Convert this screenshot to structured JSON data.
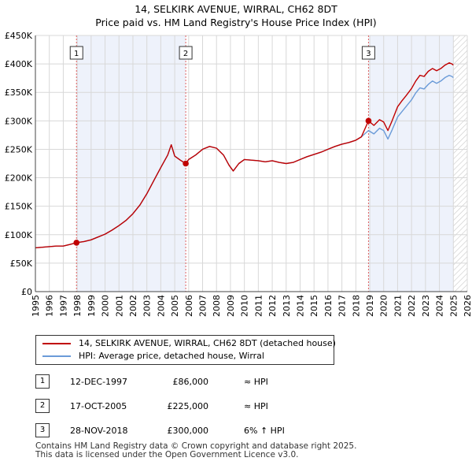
{
  "title_line1": "14, SELKIRK AVENUE, WIRRAL, CH62 8DT",
  "title_line2": "Price paid vs. HM Land Registry's House Price Index (HPI)",
  "legend": {
    "property_label": "14, SELKIRK AVENUE, WIRRAL, CH62 8DT (detached house)",
    "hpi_label": "HPI: Average price, detached house, Wirral"
  },
  "transactions": [
    {
      "num": "1",
      "date": "12-DEC-1997",
      "price": "£86,000",
      "hpi": "≈ HPI"
    },
    {
      "num": "2",
      "date": "17-OCT-2005",
      "price": "£225,000",
      "hpi": "≈ HPI"
    },
    {
      "num": "3",
      "date": "28-NOV-2018",
      "price": "£300,000",
      "hpi": "6% ↑ HPI"
    }
  ],
  "footer_line1": "Contains HM Land Registry data © Crown copyright and database right 2025.",
  "footer_line2": "This data is licensed under the Open Government Licence v3.0.",
  "colors": {
    "property": "#c00000",
    "hpi": "#6a9bd8",
    "shade": "#eef2fb",
    "grid": "#d8d8d8"
  },
  "chart_data": {
    "type": "line",
    "xlim": [
      1995,
      2026
    ],
    "ylim": [
      0,
      450000
    ],
    "x_ticks": [
      1995,
      1996,
      1997,
      1998,
      1999,
      2000,
      2001,
      2002,
      2003,
      2004,
      2005,
      2006,
      2007,
      2008,
      2009,
      2010,
      2011,
      2012,
      2013,
      2014,
      2015,
      2016,
      2017,
      2018,
      2019,
      2020,
      2021,
      2022,
      2023,
      2024,
      2025,
      2026
    ],
    "y_ticks": [
      0,
      50000,
      100000,
      150000,
      200000,
      250000,
      300000,
      350000,
      400000,
      450000
    ],
    "y_tick_labels": [
      "£0",
      "£50K",
      "£100K",
      "£150K",
      "£200K",
      "£250K",
      "£300K",
      "£350K",
      "£400K",
      "£450K"
    ],
    "shaded_ranges": [
      [
        1997.95,
        2005.79
      ],
      [
        2018.91,
        2025.0
      ]
    ],
    "hatched_after": 2025.0,
    "markers": [
      {
        "label": "1",
        "x": 1997.95,
        "y": 86000
      },
      {
        "label": "2",
        "x": 2005.79,
        "y": 225000
      },
      {
        "label": "3",
        "x": 2018.91,
        "y": 300000
      }
    ],
    "series": [
      {
        "name": "14, SELKIRK AVENUE, WIRRAL, CH62 8DT (detached house)",
        "x": [
          1995.0,
          1995.5,
          1996.0,
          1996.5,
          1997.0,
          1997.5,
          1997.95,
          1998.5,
          1999.0,
          1999.5,
          2000.0,
          2000.5,
          2001.0,
          2001.5,
          2002.0,
          2002.5,
          2003.0,
          2003.5,
          2004.0,
          2004.5,
          2004.75,
          2005.0,
          2005.4,
          2005.79,
          2006.0,
          2006.5,
          2007.0,
          2007.5,
          2008.0,
          2008.5,
          2008.9,
          2009.2,
          2009.6,
          2010.0,
          2010.5,
          2011.0,
          2011.5,
          2012.0,
          2012.5,
          2013.0,
          2013.5,
          2014.0,
          2014.5,
          2015.0,
          2015.5,
          2016.0,
          2016.5,
          2017.0,
          2017.5,
          2018.0,
          2018.4,
          2018.91,
          2019.3,
          2019.7,
          2020.0,
          2020.3,
          2020.6,
          2021.0,
          2021.3,
          2021.6,
          2022.0,
          2022.3,
          2022.6,
          2022.9,
          2023.2,
          2023.5,
          2023.8,
          2024.1,
          2024.4,
          2024.7,
          2024.9,
          2025.0
        ],
        "values": [
          77000,
          78000,
          79000,
          80000,
          80000,
          83000,
          86000,
          88000,
          91000,
          96000,
          101000,
          108000,
          116000,
          125000,
          137000,
          152000,
          172000,
          195000,
          218000,
          240000,
          258000,
          238000,
          231000,
          225000,
          232000,
          240000,
          250000,
          255000,
          252000,
          240000,
          222000,
          212000,
          225000,
          232000,
          231000,
          230000,
          228000,
          230000,
          227000,
          225000,
          227000,
          232000,
          237000,
          241000,
          245000,
          250000,
          255000,
          259000,
          262000,
          266000,
          272000,
          300000,
          292000,
          302000,
          298000,
          283000,
          300000,
          325000,
          335000,
          344000,
          357000,
          370000,
          380000,
          378000,
          387000,
          392000,
          388000,
          392000,
          398000,
          402000,
          400000,
          398000
        ]
      },
      {
        "name": "HPI: Average price, detached house, Wirral",
        "x": [
          1995.0,
          1995.5,
          1996.0,
          1996.5,
          1997.0,
          1997.5,
          1997.95,
          1998.5,
          1999.0,
          1999.5,
          2000.0,
          2000.5,
          2001.0,
          2001.5,
          2002.0,
          2002.5,
          2003.0,
          2003.5,
          2004.0,
          2004.5,
          2004.75,
          2005.0,
          2005.4,
          2005.79,
          2006.0,
          2006.5,
          2007.0,
          2007.5,
          2008.0,
          2008.5,
          2008.9,
          2009.2,
          2009.6,
          2010.0,
          2010.5,
          2011.0,
          2011.5,
          2012.0,
          2012.5,
          2013.0,
          2013.5,
          2014.0,
          2014.5,
          2015.0,
          2015.5,
          2016.0,
          2016.5,
          2017.0,
          2017.5,
          2018.0,
          2018.4,
          2018.91,
          2019.3,
          2019.7,
          2020.0,
          2020.3,
          2020.6,
          2021.0,
          2021.3,
          2021.6,
          2022.0,
          2022.3,
          2022.6,
          2022.9,
          2023.2,
          2023.5,
          2023.8,
          2024.1,
          2024.4,
          2024.7,
          2024.9,
          2025.0
        ],
        "values": [
          77000,
          78000,
          79000,
          80000,
          80000,
          83000,
          86000,
          88000,
          91000,
          96000,
          101000,
          108000,
          116000,
          125000,
          137000,
          152000,
          172000,
          195000,
          218000,
          240000,
          258000,
          238000,
          231000,
          225000,
          232000,
          240000,
          250000,
          255000,
          252000,
          240000,
          222000,
          212000,
          225000,
          232000,
          231000,
          230000,
          228000,
          230000,
          227000,
          225000,
          227000,
          232000,
          237000,
          241000,
          245000,
          250000,
          255000,
          259000,
          262000,
          266000,
          272000,
          283000,
          277000,
          287000,
          283000,
          268000,
          284000,
          307000,
          316000,
          325000,
          337000,
          349000,
          358000,
          356000,
          364000,
          370000,
          366000,
          370000,
          376000,
          380000,
          378000,
          376000
        ]
      }
    ]
  }
}
